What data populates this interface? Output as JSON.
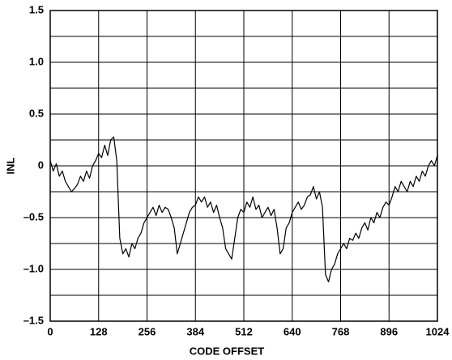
{
  "chart_data": {
    "type": "line",
    "x_label": "CODE OFFSET",
    "y_label": "INL",
    "xlim": [
      0,
      1024
    ],
    "xticks": [
      0,
      128,
      256,
      384,
      512,
      640,
      768,
      896,
      1024
    ],
    "ylim": [
      -1.5,
      1.5
    ],
    "yticks": [
      {
        "value": -1.5,
        "label": "–1.5"
      },
      {
        "value": -1.0,
        "label": "–1.0"
      },
      {
        "value": -0.5,
        "label": "–0.5"
      },
      0,
      {
        "value": 0.5,
        "label": "0.5"
      },
      {
        "value": 1.0,
        "label": "1.0"
      },
      {
        "value": 1.5,
        "label": "1.5"
      }
    ],
    "ygrid": [
      -1.25,
      -0.75,
      -0.25,
      0.25,
      0.75,
      1.25
    ],
    "grid": true,
    "series": [
      {
        "color": "#000000",
        "x": [
          0,
          8,
          16,
          24,
          32,
          40,
          48,
          56,
          64,
          72,
          80,
          88,
          96,
          104,
          112,
          120,
          128,
          136,
          144,
          152,
          160,
          168,
          176,
          184,
          192,
          200,
          208,
          216,
          224,
          232,
          240,
          248,
          256,
          264,
          272,
          280,
          288,
          296,
          304,
          312,
          320,
          328,
          336,
          344,
          352,
          360,
          368,
          376,
          384,
          392,
          400,
          408,
          416,
          424,
          432,
          440,
          448,
          456,
          464,
          472,
          480,
          488,
          496,
          504,
          512,
          520,
          528,
          536,
          544,
          552,
          560,
          568,
          576,
          584,
          592,
          600,
          608,
          616,
          624,
          632,
          640,
          648,
          656,
          664,
          672,
          680,
          688,
          696,
          704,
          712,
          720,
          728,
          736,
          744,
          752,
          760,
          768,
          776,
          784,
          792,
          800,
          808,
          816,
          824,
          832,
          840,
          848,
          856,
          864,
          872,
          880,
          888,
          896,
          904,
          912,
          920,
          928,
          936,
          944,
          952,
          960,
          968,
          976,
          984,
          992,
          1000,
          1008,
          1016,
          1024
        ],
        "values": [
          0.05,
          -0.05,
          0.02,
          -0.1,
          -0.05,
          -0.15,
          -0.2,
          -0.25,
          -0.22,
          -0.18,
          -0.1,
          -0.15,
          -0.05,
          -0.12,
          0.0,
          0.05,
          0.12,
          0.08,
          0.2,
          0.1,
          0.25,
          0.28,
          0.05,
          -0.7,
          -0.85,
          -0.8,
          -0.88,
          -0.75,
          -0.8,
          -0.7,
          -0.65,
          -0.55,
          -0.5,
          -0.45,
          -0.4,
          -0.48,
          -0.38,
          -0.45,
          -0.4,
          -0.42,
          -0.5,
          -0.6,
          -0.85,
          -0.75,
          -0.65,
          -0.55,
          -0.45,
          -0.4,
          -0.38,
          -0.3,
          -0.35,
          -0.3,
          -0.4,
          -0.35,
          -0.45,
          -0.38,
          -0.5,
          -0.6,
          -0.8,
          -0.85,
          -0.9,
          -0.7,
          -0.5,
          -0.42,
          -0.45,
          -0.35,
          -0.4,
          -0.3,
          -0.42,
          -0.38,
          -0.5,
          -0.45,
          -0.4,
          -0.48,
          -0.42,
          -0.6,
          -0.85,
          -0.8,
          -0.6,
          -0.55,
          -0.45,
          -0.4,
          -0.35,
          -0.42,
          -0.38,
          -0.3,
          -0.28,
          -0.2,
          -0.32,
          -0.25,
          -0.4,
          -1.05,
          -1.12,
          -1.0,
          -0.95,
          -0.85,
          -0.8,
          -0.75,
          -0.8,
          -0.7,
          -0.72,
          -0.65,
          -0.7,
          -0.6,
          -0.55,
          -0.62,
          -0.5,
          -0.55,
          -0.45,
          -0.5,
          -0.4,
          -0.35,
          -0.38,
          -0.3,
          -0.2,
          -0.25,
          -0.15,
          -0.2,
          -0.25,
          -0.15,
          -0.2,
          -0.1,
          -0.15,
          -0.05,
          -0.1,
          0.0,
          0.05,
          0.0,
          0.1
        ]
      }
    ]
  }
}
